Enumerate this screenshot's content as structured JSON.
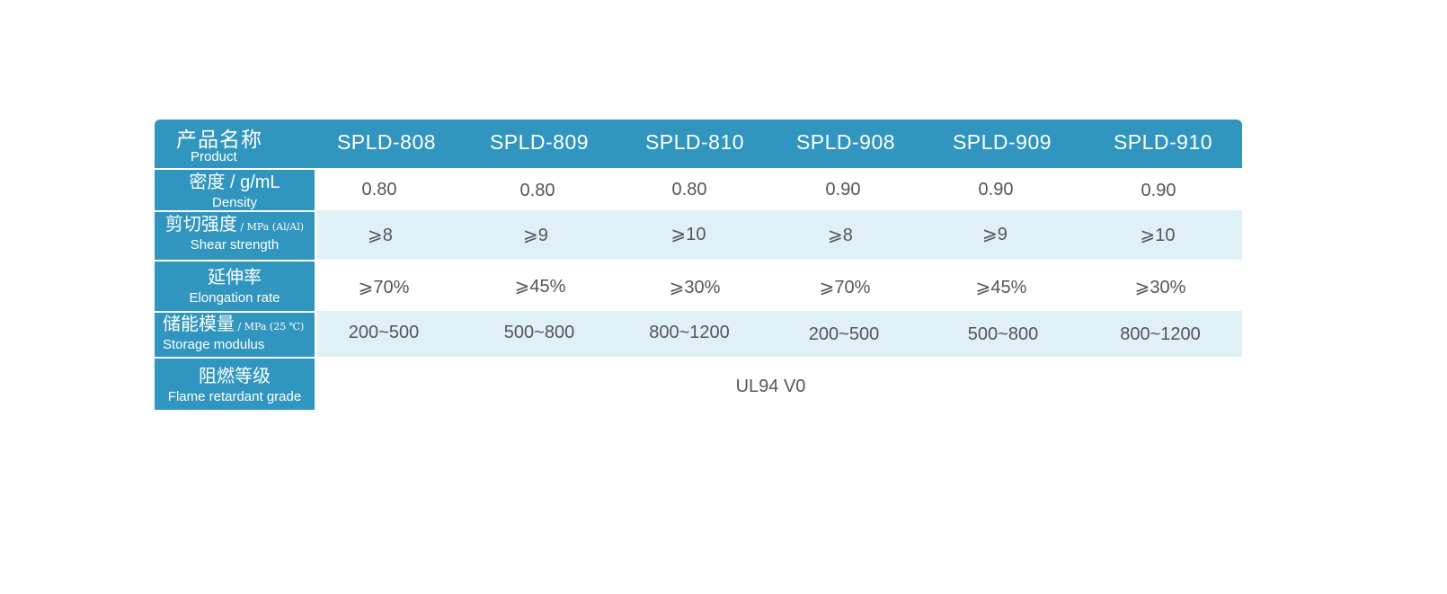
{
  "header": {
    "label_cn": "产品名称",
    "label_en": "Product",
    "models": [
      "SPLD-808",
      "SPLD-809",
      "SPLD-810",
      "SPLD-908",
      "SPLD-909",
      "SPLD-910"
    ]
  },
  "rows": [
    {
      "label_cn": "密度 / g/mL",
      "label_unit": "",
      "label_en": "Density",
      "values": [
        "0.80",
        "0.80",
        "0.80",
        "0.90",
        "0.90",
        "0.90"
      ]
    },
    {
      "label_cn": "剪切强度",
      "label_unit": " / MPa (Al/Al)",
      "label_en": "Shear strength",
      "values": [
        "⩾8",
        "⩾9",
        "⩾10",
        "⩾8",
        "⩾9",
        "⩾10"
      ]
    },
    {
      "label_cn": "延伸率",
      "label_unit": "",
      "label_en": "Elongation rate",
      "values": [
        "⩾70%",
        "⩾45%",
        "⩾30%",
        "⩾70%",
        "⩾45%",
        "⩾30%"
      ]
    },
    {
      "label_cn": "储能模量",
      "label_unit": " / MPa (25 ℃)",
      "label_en": "Storage modulus",
      "values": [
        "200~500",
        "500~800",
        "800~1200",
        "200~500",
        "500~800",
        "800~1200"
      ]
    },
    {
      "label_cn": "阻燃等级",
      "label_unit": "",
      "label_en": "Flame retardant grade",
      "value": "UL94 V0"
    }
  ],
  "colors": {
    "header_bg": "#3196bf",
    "tint_row": "#dff1f7",
    "value_text": "#555555"
  }
}
